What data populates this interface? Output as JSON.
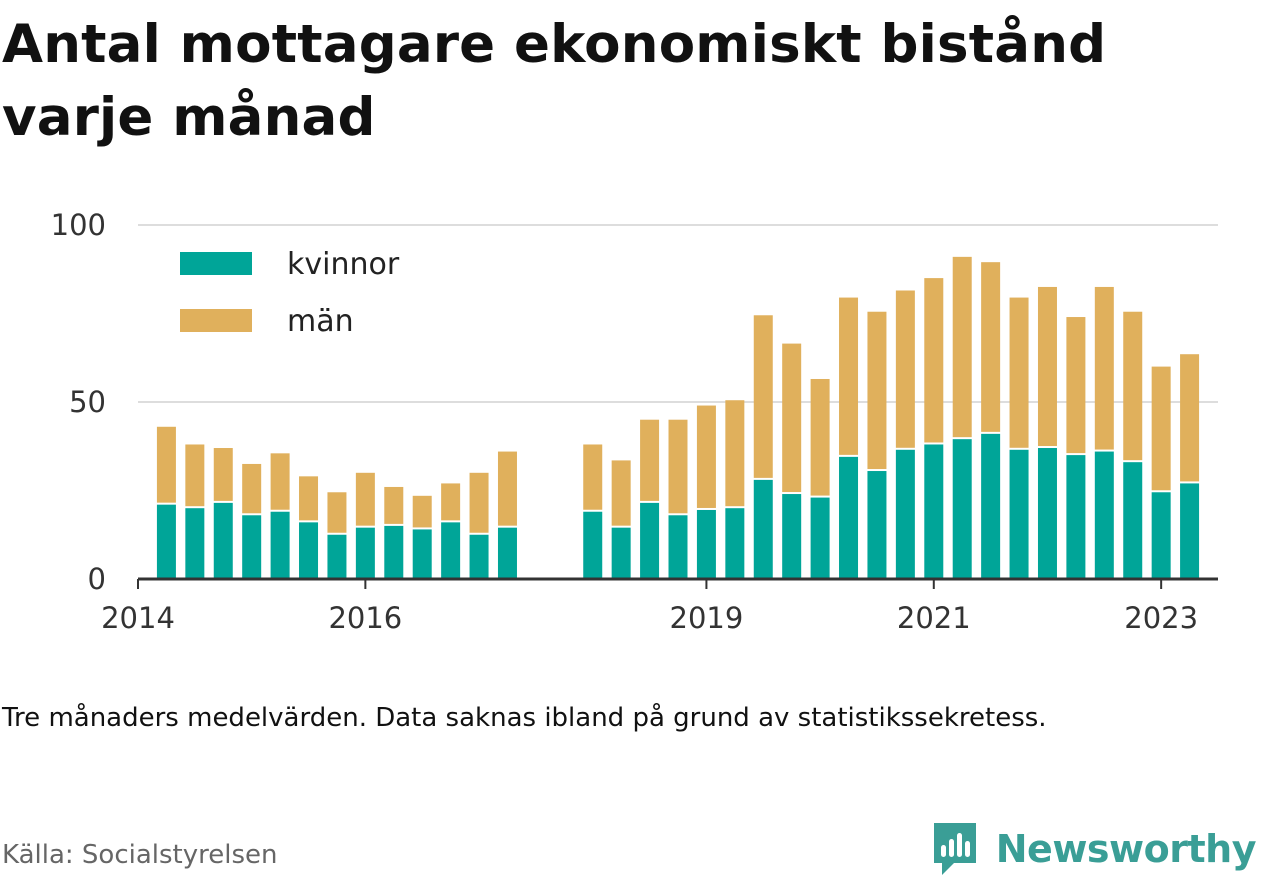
{
  "header": {
    "title": "Antal mottagare ekonomiskt bistånd varje månad"
  },
  "footer": {
    "note": "Tre månaders medelvärden. Data saknas ibland på grund av statistikssekretess.",
    "source": "Källa: Socialstyrelsen",
    "brand": "Newsworthy",
    "brand_icon": "newsworthy-logo-icon"
  },
  "colors": {
    "kvinnor": "#00a598",
    "man": "#e0b05c",
    "grid": "#dddddd",
    "axis": "#333333",
    "brand": "#3a9e96"
  },
  "chart_data": {
    "type": "bar",
    "stacked": true,
    "ylim": [
      0,
      100
    ],
    "yticks": [
      0,
      50,
      100
    ],
    "xlim": [
      "2014-01",
      "2023-07"
    ],
    "xticks": [
      "2014",
      "2016",
      "2019",
      "2021",
      "2023"
    ],
    "legend_position": "top-left",
    "grid": true,
    "categories": [
      "2014-04",
      "2014-07",
      "2014-10",
      "2015-01",
      "2015-04",
      "2015-07",
      "2015-10",
      "2016-01",
      "2016-04",
      "2016-07",
      "2016-10",
      "2017-01",
      "2017-04",
      "2018-01",
      "2018-04",
      "2018-07",
      "2018-10",
      "2019-01",
      "2019-04",
      "2019-07",
      "2019-10",
      "2020-01",
      "2020-04",
      "2020-07",
      "2020-10",
      "2021-01",
      "2021-04",
      "2021-07",
      "2021-10",
      "2022-01",
      "2022-04",
      "2022-07",
      "2022-10",
      "2023-01",
      "2023-04"
    ],
    "series": [
      {
        "name": "kvinnor",
        "values": [
          21,
          20,
          21.5,
          18,
          19,
          16,
          12.5,
          14.5,
          15,
          14,
          16,
          12.5,
          14.5,
          19,
          14.5,
          21.5,
          18,
          19.5,
          20,
          28,
          24,
          23,
          34.5,
          30.5,
          36.5,
          38,
          39.5,
          41,
          36.5,
          37,
          35,
          36,
          33,
          24.5,
          27
        ]
      },
      {
        "name": "män",
        "values": [
          22,
          18,
          15.5,
          14.5,
          16.5,
          13,
          12,
          15.5,
          11,
          9.5,
          11,
          17.5,
          21.5,
          19,
          19,
          23.5,
          27,
          29.5,
          30.5,
          46.5,
          42.5,
          33.5,
          45,
          45,
          45,
          47,
          51.5,
          48.5,
          43,
          45.5,
          39,
          46.5,
          42.5,
          35.5,
          36.5
        ]
      }
    ]
  }
}
